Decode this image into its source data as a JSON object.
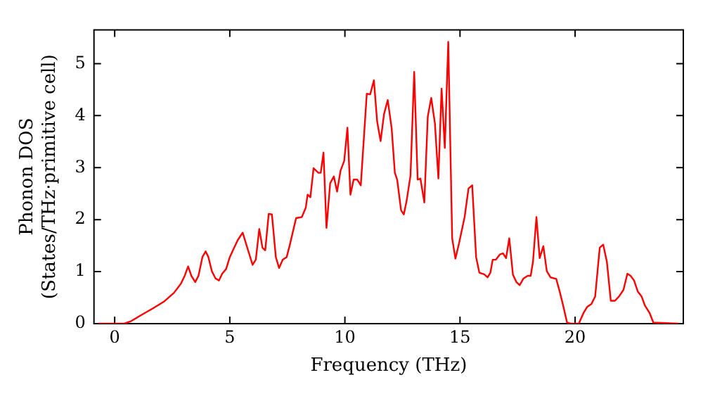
{
  "chart_data": {
    "type": "line",
    "xlabel": "Frequency (THz)",
    "ylabel": "Phonon DOS\n(States/THz·primitive cell)",
    "xlim": [
      -0.9,
      24.7
    ],
    "ylim": [
      0,
      5.65
    ],
    "xticks": [
      0,
      5,
      10,
      15,
      20
    ],
    "yticks": [
      0,
      1,
      2,
      3,
      4,
      5
    ],
    "grid": false,
    "legend": false,
    "marker": "none",
    "line_style": "solid",
    "series": [
      {
        "color": "#ff0000",
        "x": [
          -0.7,
          0.41,
          0.72,
          1.13,
          1.65,
          2.16,
          2.57,
          2.88,
          3.04,
          3.19,
          3.33,
          3.5,
          3.64,
          3.81,
          3.95,
          4.07,
          4.22,
          4.38,
          4.53,
          4.67,
          4.84,
          5.0,
          5.19,
          5.35,
          5.56,
          5.76,
          5.99,
          6.13,
          6.28,
          6.42,
          6.54,
          6.69,
          6.83,
          7.0,
          7.14,
          7.3,
          7.47,
          7.6,
          7.88,
          8.13,
          8.3,
          8.38,
          8.5,
          8.64,
          8.85,
          8.95,
          9.07,
          9.2,
          9.36,
          9.52,
          9.66,
          9.81,
          9.97,
          10.11,
          10.24,
          10.38,
          10.54,
          10.69,
          10.95,
          11.1,
          11.26,
          11.4,
          11.55,
          11.7,
          11.86,
          12.03,
          12.17,
          12.27,
          12.44,
          12.56,
          12.68,
          12.85,
          13.01,
          13.16,
          13.28,
          13.45,
          13.6,
          13.75,
          13.91,
          14.06,
          14.2,
          14.34,
          14.49,
          14.66,
          14.8,
          14.96,
          15.2,
          15.37,
          15.53,
          15.7,
          15.84,
          16.05,
          16.2,
          16.32,
          16.42,
          16.56,
          16.73,
          16.87,
          17.0,
          17.14,
          17.3,
          17.45,
          17.59,
          17.76,
          17.94,
          18.07,
          18.17,
          18.32,
          18.46,
          18.62,
          18.77,
          18.93,
          19.18,
          19.34,
          19.49,
          19.65,
          19.81,
          20.16,
          20.36,
          20.52,
          20.71,
          20.87,
          21.07,
          21.22,
          21.38,
          21.55,
          21.73,
          21.9,
          22.1,
          22.27,
          22.41,
          22.56,
          22.72,
          22.89,
          23.03,
          23.24,
          23.4,
          24.5
        ],
        "values": [
          0,
          0,
          0.05,
          0.16,
          0.29,
          0.43,
          0.59,
          0.77,
          0.92,
          1.1,
          0.92,
          0.8,
          0.92,
          1.28,
          1.39,
          1.28,
          1.01,
          0.87,
          0.83,
          0.96,
          1.05,
          1.28,
          1.46,
          1.61,
          1.75,
          1.46,
          1.13,
          1.23,
          1.82,
          1.46,
          1.41,
          2.11,
          2.1,
          1.28,
          1.07,
          1.23,
          1.28,
          1.5,
          2.03,
          2.05,
          2.23,
          2.48,
          2.43,
          2.99,
          2.9,
          2.9,
          3.29,
          1.84,
          2.7,
          2.83,
          2.54,
          2.94,
          3.13,
          3.77,
          2.48,
          2.77,
          2.77,
          2.66,
          4.42,
          4.41,
          4.68,
          3.89,
          3.51,
          4.03,
          4.3,
          3.76,
          2.9,
          2.77,
          2.18,
          2.1,
          2.36,
          2.85,
          4.84,
          2.77,
          2.79,
          2.33,
          3.98,
          4.34,
          3.85,
          2.79,
          4.52,
          3.38,
          5.42,
          1.64,
          1.25,
          1.55,
          2.05,
          2.6,
          2.66,
          1.28,
          0.98,
          0.95,
          0.89,
          0.98,
          1.23,
          1.23,
          1.33,
          1.35,
          1.26,
          1.64,
          0.94,
          0.8,
          0.74,
          0.87,
          0.92,
          0.92,
          1.19,
          2.05,
          1.26,
          1.49,
          1.01,
          0.89,
          0.86,
          0.6,
          0.33,
          0.02,
          0,
          0,
          0.2,
          0.32,
          0.38,
          0.52,
          1.46,
          1.52,
          1.19,
          0.44,
          0.44,
          0.52,
          0.65,
          0.96,
          0.92,
          0.83,
          0.62,
          0.52,
          0.35,
          0.2,
          0.02,
          0
        ]
      }
    ]
  }
}
